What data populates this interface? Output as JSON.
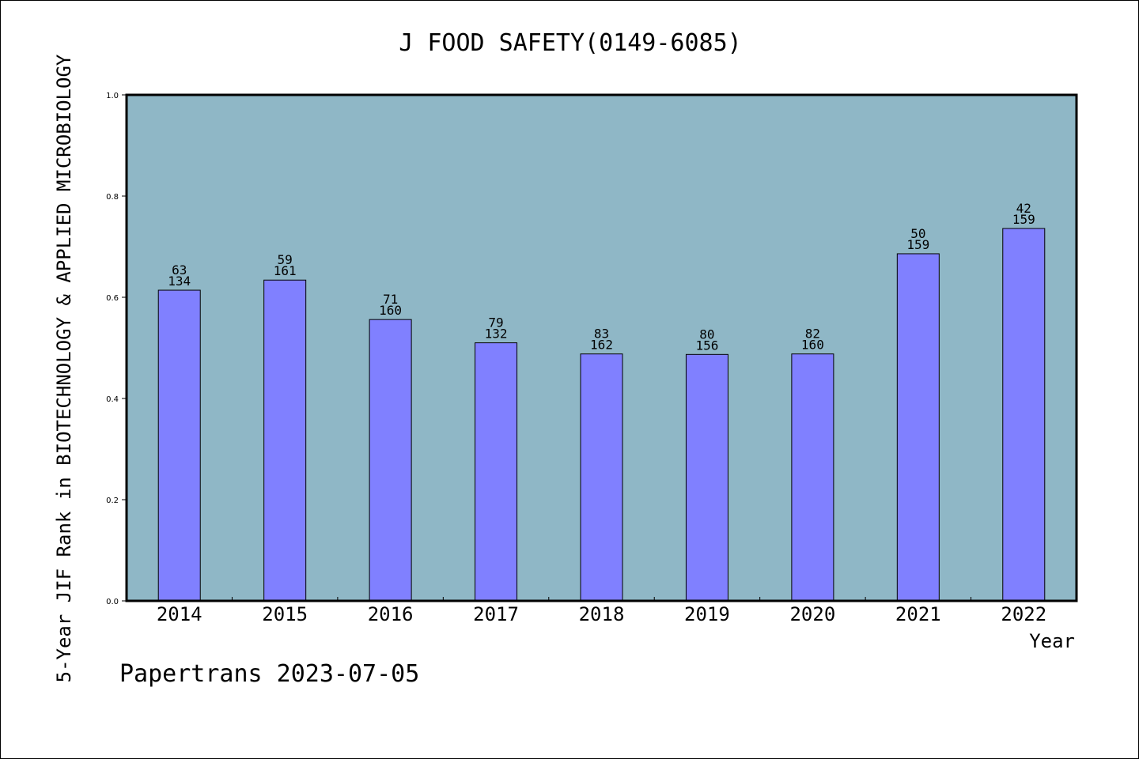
{
  "chart_data": {
    "type": "bar",
    "title": "J FOOD SAFETY(0149-6085)",
    "ylabel": "5-Year JIF Rank in BIOTECHNOLOGY & APPLIED MICROBIOLOGY",
    "xlabel": "Year",
    "ylim": [
      0,
      1.0
    ],
    "yticks": [
      "0.0",
      "0.2",
      "0.4",
      "0.6",
      "0.8",
      "1.0"
    ],
    "categories": [
      "2014",
      "2015",
      "2016",
      "2017",
      "2018",
      "2019",
      "2020",
      "2021",
      "2022"
    ],
    "values": [
      0.614,
      0.634,
      0.556,
      0.51,
      0.488,
      0.487,
      0.488,
      0.686,
      0.736
    ],
    "labels_top": [
      "63",
      "59",
      "71",
      "79",
      "83",
      "80",
      "82",
      "50",
      "42"
    ],
    "labels_bottom": [
      "134",
      "161",
      "160",
      "132",
      "162",
      "156",
      "160",
      "159",
      "159"
    ],
    "grid": false,
    "colors": {
      "plot_bg": "#8fb7c6",
      "bar": "#8080ff",
      "bar_edge": "#000000"
    }
  },
  "footer": "Papertrans 2023-07-05"
}
